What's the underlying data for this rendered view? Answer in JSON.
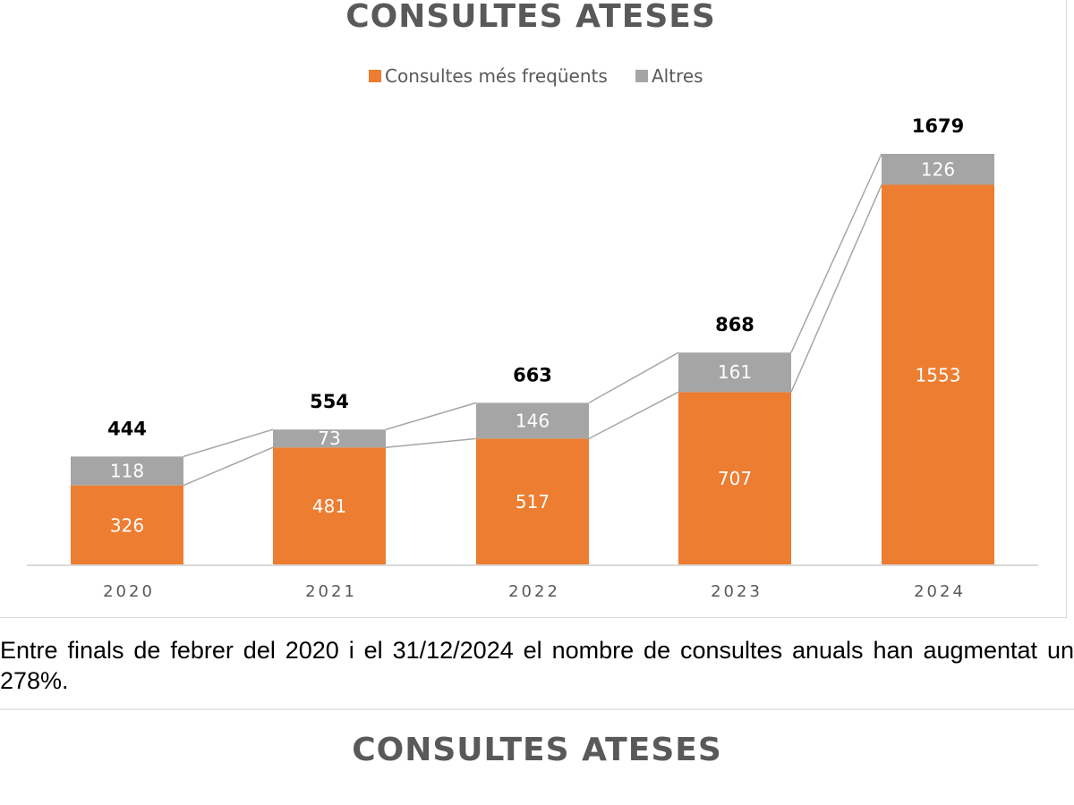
{
  "chart_data": {
    "type": "bar",
    "stacked": true,
    "title": "CONSULTES ATESES",
    "categories": [
      "2020",
      "2021",
      "2022",
      "2023",
      "2024"
    ],
    "series": [
      {
        "name": "Consultes més freqüents",
        "values": [
          326,
          481,
          517,
          707,
          1553
        ],
        "color": "#ED7D31"
      },
      {
        "name": "Altres",
        "values": [
          118,
          73,
          146,
          161,
          126
        ],
        "color": "#A5A5A5"
      }
    ],
    "totals": [
      444,
      554,
      663,
      868,
      1679
    ],
    "series_lines": true,
    "legend": "top-center",
    "grid": false,
    "ylim": [
      0,
      1679
    ]
  },
  "caption": "Entre finals de febrer del 2020 i el 31/12/2024 el nombre de consultes anuals han augmentat un 278%.",
  "next_section_title": "CONSULTES ATESES"
}
